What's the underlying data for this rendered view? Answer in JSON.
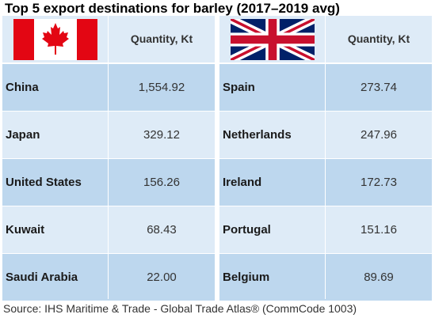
{
  "title": "Top 5 export destinations for barley (2017–2019 avg)",
  "source": "Source: IHS Maritime & Trade - Global Trade Atlas® (CommCode 1003)",
  "colors": {
    "row_light": "#deebf7",
    "row_dark": "#bdd7ee",
    "canada_red": "#e30613",
    "uk_blue": "#012169",
    "uk_red": "#c8102e"
  },
  "chart_data": [
    {
      "type": "table",
      "flag": "canada-flag",
      "columns": [
        "",
        "Quantity, Kt"
      ],
      "rows": [
        {
          "name": "China",
          "value": "1,554.92"
        },
        {
          "name": "Japan",
          "value": "329.12"
        },
        {
          "name": "United States",
          "value": "156.26"
        },
        {
          "name": "Kuwait",
          "value": "68.43"
        },
        {
          "name": "Saudi Arabia",
          "value": "22.00"
        }
      ]
    },
    {
      "type": "table",
      "flag": "uk-flag",
      "columns": [
        "",
        "Quantity, Kt"
      ],
      "rows": [
        {
          "name": "Spain",
          "value": "273.74"
        },
        {
          "name": "Netherlands",
          "value": "247.96"
        },
        {
          "name": "Ireland",
          "value": "172.73"
        },
        {
          "name": "Portugal",
          "value": "151.16"
        },
        {
          "name": "Belgium",
          "value": "89.69"
        }
      ]
    }
  ]
}
